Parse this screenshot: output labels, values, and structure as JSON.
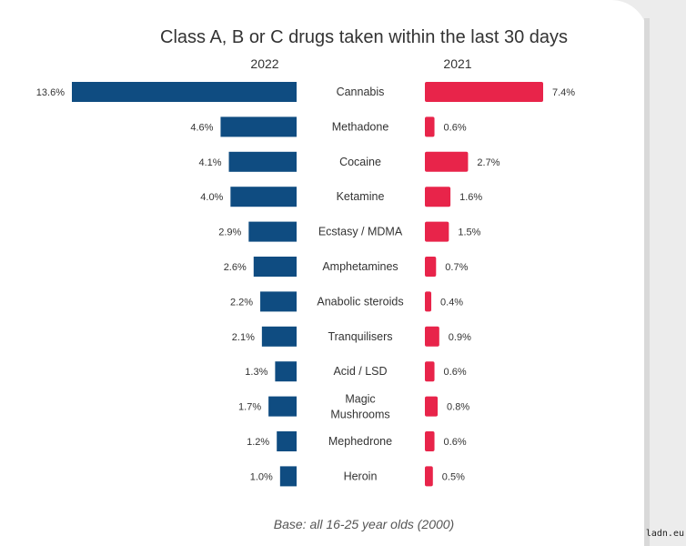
{
  "colors": {
    "left_series": "#0f4c81",
    "right_series": "#e8244a"
  },
  "watermark": "ladn.eu",
  "chart_data": {
    "type": "bar",
    "orientation": "horizontal-butterfly",
    "title": "Class A, B or C drugs taken within the last 30 days",
    "footnote": "Base: all 16-25 year olds (2000)",
    "categories": [
      [
        "Cannabis"
      ],
      [
        "Methadone"
      ],
      [
        "Cocaine"
      ],
      [
        "Ketamine"
      ],
      [
        "Ecstasy / MDMA"
      ],
      [
        "Amphetamines"
      ],
      [
        "Anabolic steroids"
      ],
      [
        "Tranquilisers"
      ],
      [
        "Acid / LSD"
      ],
      [
        "Magic",
        "Mushrooms"
      ],
      [
        "Mephedrone"
      ],
      [
        "Heroin"
      ]
    ],
    "series": [
      {
        "name": "2022",
        "values": [
          13.6,
          4.6,
          4.1,
          4.0,
          2.9,
          2.6,
          2.2,
          2.1,
          1.3,
          1.7,
          1.2,
          1.0
        ],
        "labels": [
          "13.6%",
          "4.6%",
          "4.1%",
          "4.0%",
          "2.9%",
          "2.6%",
          "2.2%",
          "2.1%",
          "1.3%",
          "1.7%",
          "1.2%",
          "1.0%"
        ]
      },
      {
        "name": "2021",
        "values": [
          7.4,
          0.6,
          2.7,
          1.6,
          1.5,
          0.7,
          0.4,
          0.9,
          0.6,
          0.8,
          0.6,
          0.5
        ],
        "labels": [
          "7.4%",
          "0.6%",
          "2.7%",
          "1.6%",
          "1.5%",
          "0.7%",
          "0.4%",
          "0.9%",
          "0.6%",
          "0.8%",
          "0.6%",
          "0.5%"
        ]
      }
    ],
    "unit": "%",
    "grid": false
  }
}
